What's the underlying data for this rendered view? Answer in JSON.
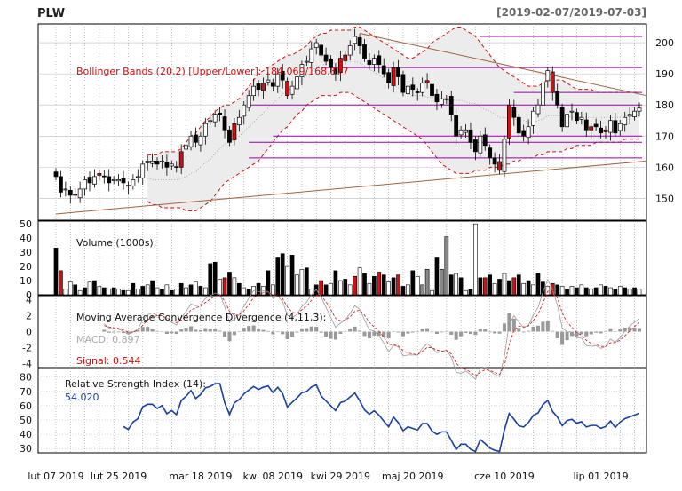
{
  "header": {
    "symbol": "PLW",
    "date_range": "[2019-02-07/2019-07-03]"
  },
  "colors": {
    "bollinger": "#cc1111",
    "trend_purple": "#9900aa",
    "trend_brown": "#a0643c",
    "macd_line": "#999999",
    "signal_line": "#cc1111",
    "rsi_line": "#1a3fa0",
    "rsi_value": "#1a3fa0",
    "up_candle": "#ffffff",
    "down_candle": "#000000",
    "volume_grey": "#888888"
  },
  "chart_data": [
    {
      "type": "candlestick",
      "panel": "price",
      "ylim": [
        143,
        206
      ],
      "y_ticks": [
        150,
        160,
        170,
        180,
        190,
        200
      ],
      "x_tick_labels": [
        "lut 07 2019",
        "lut 25 2019",
        "mar 18 2019",
        "kwi 08 2019",
        "kwi 29 2019",
        "maj 20 2019",
        "cze 10 2019",
        "lip 01 2019"
      ],
      "legend": {
        "bollinger_label": "Bollinger Bands (20,2) [Upper/Lower]: 184.069/168.877"
      },
      "close": [
        157,
        152,
        153,
        151,
        151,
        153,
        156,
        155,
        157,
        158,
        157,
        155,
        156,
        156,
        155,
        154,
        156,
        157,
        161,
        162,
        162,
        161,
        162,
        160,
        161,
        160,
        165,
        167,
        170,
        168,
        170,
        174,
        175,
        177,
        177,
        172,
        168,
        174,
        176,
        180,
        183,
        186,
        185,
        187,
        188,
        186,
        190,
        188,
        183,
        186,
        189,
        193,
        194,
        198,
        200,
        196,
        194,
        192,
        190,
        195,
        196,
        199,
        202,
        199,
        195,
        193,
        195,
        193,
        190,
        187,
        192,
        189,
        184,
        186,
        185,
        184,
        187,
        187,
        183,
        181,
        182,
        182,
        177,
        170,
        172,
        172,
        168,
        165,
        170,
        167,
        163,
        161,
        159,
        169,
        180,
        176,
        171,
        170,
        173,
        178,
        180,
        187,
        191,
        184,
        180,
        173,
        177,
        178,
        175,
        176,
        172,
        173,
        173,
        171,
        172,
        175,
        171,
        174,
        176,
        177,
        178,
        179
      ],
      "bollinger_upper": [
        null,
        null,
        null,
        null,
        null,
        null,
        null,
        null,
        null,
        null,
        null,
        null,
        null,
        null,
        null,
        null,
        null,
        null,
        null,
        164,
        164,
        164,
        165,
        165,
        165,
        165,
        166,
        168,
        170,
        171,
        173,
        175,
        176,
        178,
        179,
        180,
        180,
        181,
        182,
        184,
        186,
        188,
        190,
        191,
        192,
        193,
        194,
        195,
        196,
        196,
        197,
        198,
        199,
        201,
        202,
        203,
        203,
        204,
        204,
        204,
        204,
        204,
        205,
        205,
        204,
        203,
        202,
        201,
        200,
        199,
        198,
        197,
        196,
        195,
        195,
        196,
        197,
        198,
        200,
        201,
        202,
        203,
        204,
        205,
        205,
        204,
        203,
        202,
        200,
        198,
        196,
        194,
        192,
        191,
        190,
        189,
        188,
        187,
        186,
        186,
        186,
        187,
        188,
        188,
        188,
        188,
        187,
        186,
        185,
        185,
        185,
        185,
        184,
        184,
        184,
        184,
        184,
        184,
        184,
        184,
        184,
        184
      ],
      "bollinger_lower": [
        null,
        null,
        null,
        null,
        null,
        null,
        null,
        null,
        null,
        null,
        null,
        null,
        null,
        null,
        null,
        null,
        null,
        null,
        null,
        149,
        148,
        148,
        147,
        147,
        147,
        147,
        147,
        146,
        146,
        146,
        147,
        148,
        149,
        151,
        153,
        155,
        156,
        157,
        158,
        159,
        160,
        161,
        162,
        164,
        166,
        168,
        170,
        172,
        173,
        175,
        177,
        178,
        180,
        181,
        182,
        183,
        183,
        183,
        183,
        184,
        184,
        184,
        183,
        182,
        181,
        180,
        179,
        178,
        177,
        176,
        175,
        174,
        173,
        172,
        171,
        170,
        169,
        167,
        165,
        163,
        161,
        160,
        159,
        158,
        158,
        158,
        158,
        159,
        159,
        159,
        160,
        160,
        160,
        161,
        161,
        162,
        162,
        163,
        163,
        163,
        164,
        164,
        165,
        165,
        165,
        165,
        166,
        166,
        167,
        167,
        167,
        167,
        168,
        168,
        168,
        168,
        168,
        168,
        169,
        169,
        169,
        169
      ],
      "horizontal_levels": [
        202,
        192,
        184,
        180,
        170,
        168,
        163
      ],
      "trendlines": [
        {
          "name": "support",
          "from": [
            0,
            145
          ],
          "to": [
            121,
            162
          ]
        },
        {
          "name": "resistance",
          "from": [
            63,
            203
          ],
          "to": [
            121,
            183
          ]
        }
      ]
    },
    {
      "type": "bar",
      "panel": "volume",
      "ylim": [
        0,
        52
      ],
      "y_ticks": [
        0,
        10,
        20,
        30,
        40,
        50
      ],
      "legend": {
        "label": "Volume (1000s):"
      },
      "values": [
        33,
        17,
        4,
        9,
        7,
        3,
        5,
        9,
        10,
        6,
        5,
        4,
        5,
        4,
        3,
        3,
        8,
        4,
        6,
        7,
        10,
        5,
        4,
        7,
        3,
        4,
        8,
        5,
        7,
        9,
        6,
        5,
        22,
        23,
        11,
        12,
        16,
        12,
        8,
        5,
        4,
        6,
        8,
        6,
        17,
        7,
        26,
        29,
        20,
        28,
        14,
        18,
        19,
        4,
        7,
        10,
        7,
        8,
        17,
        10,
        11,
        7,
        13,
        19,
        15,
        8,
        13,
        16,
        14,
        9,
        12,
        14,
        6,
        7,
        17,
        13,
        7,
        18,
        3,
        26,
        18,
        41,
        14,
        15,
        12,
        3,
        4,
        50,
        12,
        12,
        14,
        8,
        11,
        15,
        10,
        12,
        14,
        8,
        10,
        7,
        15,
        9,
        6,
        8,
        7,
        6,
        4,
        6,
        5,
        7,
        5,
        4,
        5,
        7,
        6,
        5,
        4,
        6,
        5,
        4,
        5,
        4
      ],
      "bar_colors": [
        "k",
        "r",
        "w",
        "w",
        "k",
        "w",
        "k",
        "w",
        "k",
        "w",
        "k",
        "w",
        "k",
        "w",
        "k",
        "w",
        "k",
        "w",
        "k",
        "w",
        "k",
        "w",
        "k",
        "w",
        "k",
        "w",
        "k",
        "w",
        "k",
        "w",
        "k",
        "w",
        "k",
        "k",
        "w",
        "r",
        "k",
        "w",
        "k",
        "w",
        "k",
        "w",
        "k",
        "w",
        "k",
        "w",
        "k",
        "k",
        "w",
        "k",
        "w",
        "w",
        "k",
        "w",
        "k",
        "r",
        "k",
        "w",
        "k",
        "w",
        "k",
        "w",
        "r",
        "w",
        "k",
        "w",
        "k",
        "r",
        "k",
        "w",
        "k",
        "r",
        "k",
        "w",
        "k",
        "w",
        "g",
        "g",
        "w",
        "k",
        "g",
        "g",
        "k",
        "w",
        "k",
        "w",
        "k",
        "w",
        "k",
        "r",
        "k",
        "w",
        "k",
        "w",
        "k",
        "r",
        "k",
        "w",
        "k",
        "w",
        "k",
        "k",
        "w",
        "r",
        "k",
        "w",
        "k",
        "w",
        "k",
        "w",
        "k",
        "w",
        "k",
        "w",
        "k",
        "w",
        "k",
        "w",
        "k",
        "w",
        "k",
        "w"
      ]
    },
    {
      "type": "bar+line",
      "panel": "macd",
      "ylim": [
        -4.5,
        4.5
      ],
      "y_ticks": [
        -4,
        -2,
        0,
        2,
        4
      ],
      "legend": {
        "title": "Moving Average Convergence Divergence (4,11,3):",
        "macd_label": "MACD: 0.897",
        "signal_label": "Signal: 0.544"
      }
    },
    {
      "type": "line",
      "panel": "rsi",
      "ylim": [
        27,
        86
      ],
      "y_ticks": [
        30,
        40,
        50,
        60,
        70,
        80
      ],
      "legend": {
        "title": "Relative Strength Index (14):",
        "value_label": "54.020"
      }
    }
  ]
}
